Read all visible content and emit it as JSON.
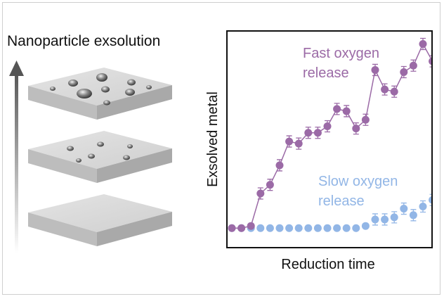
{
  "left_panel": {
    "title": "Nanoparticle exsolution"
  },
  "chart_data": {
    "type": "scatter",
    "xlabel": "Reduction time",
    "ylabel": "Exsolved metal",
    "series": [
      {
        "name": "Fast oxygen release",
        "label_lines": [
          "Fast oxygen",
          "release"
        ],
        "color": "#9b6aa6",
        "error_bars": true,
        "connected": true,
        "values": [
          0.09,
          0.09,
          0.1,
          0.25,
          0.29,
          0.38,
          0.49,
          0.48,
          0.53,
          0.53,
          0.56,
          0.64,
          0.63,
          0.55,
          0.59,
          0.82,
          0.73,
          0.72,
          0.81,
          0.84,
          0.94,
          0.86
        ]
      },
      {
        "name": "Slow oxygen release",
        "label_lines": [
          "Slow oxygen",
          "release"
        ],
        "color": "#92b6e6",
        "error_bars": true,
        "connected": false,
        "values": [
          0.09,
          0.09,
          0.09,
          0.09,
          0.09,
          0.09,
          0.09,
          0.09,
          0.09,
          0.09,
          0.09,
          0.09,
          0.09,
          0.09,
          0.1,
          0.13,
          0.13,
          0.14,
          0.18,
          0.15,
          0.19,
          0.22,
          0.22,
          0.24
        ]
      }
    ]
  }
}
